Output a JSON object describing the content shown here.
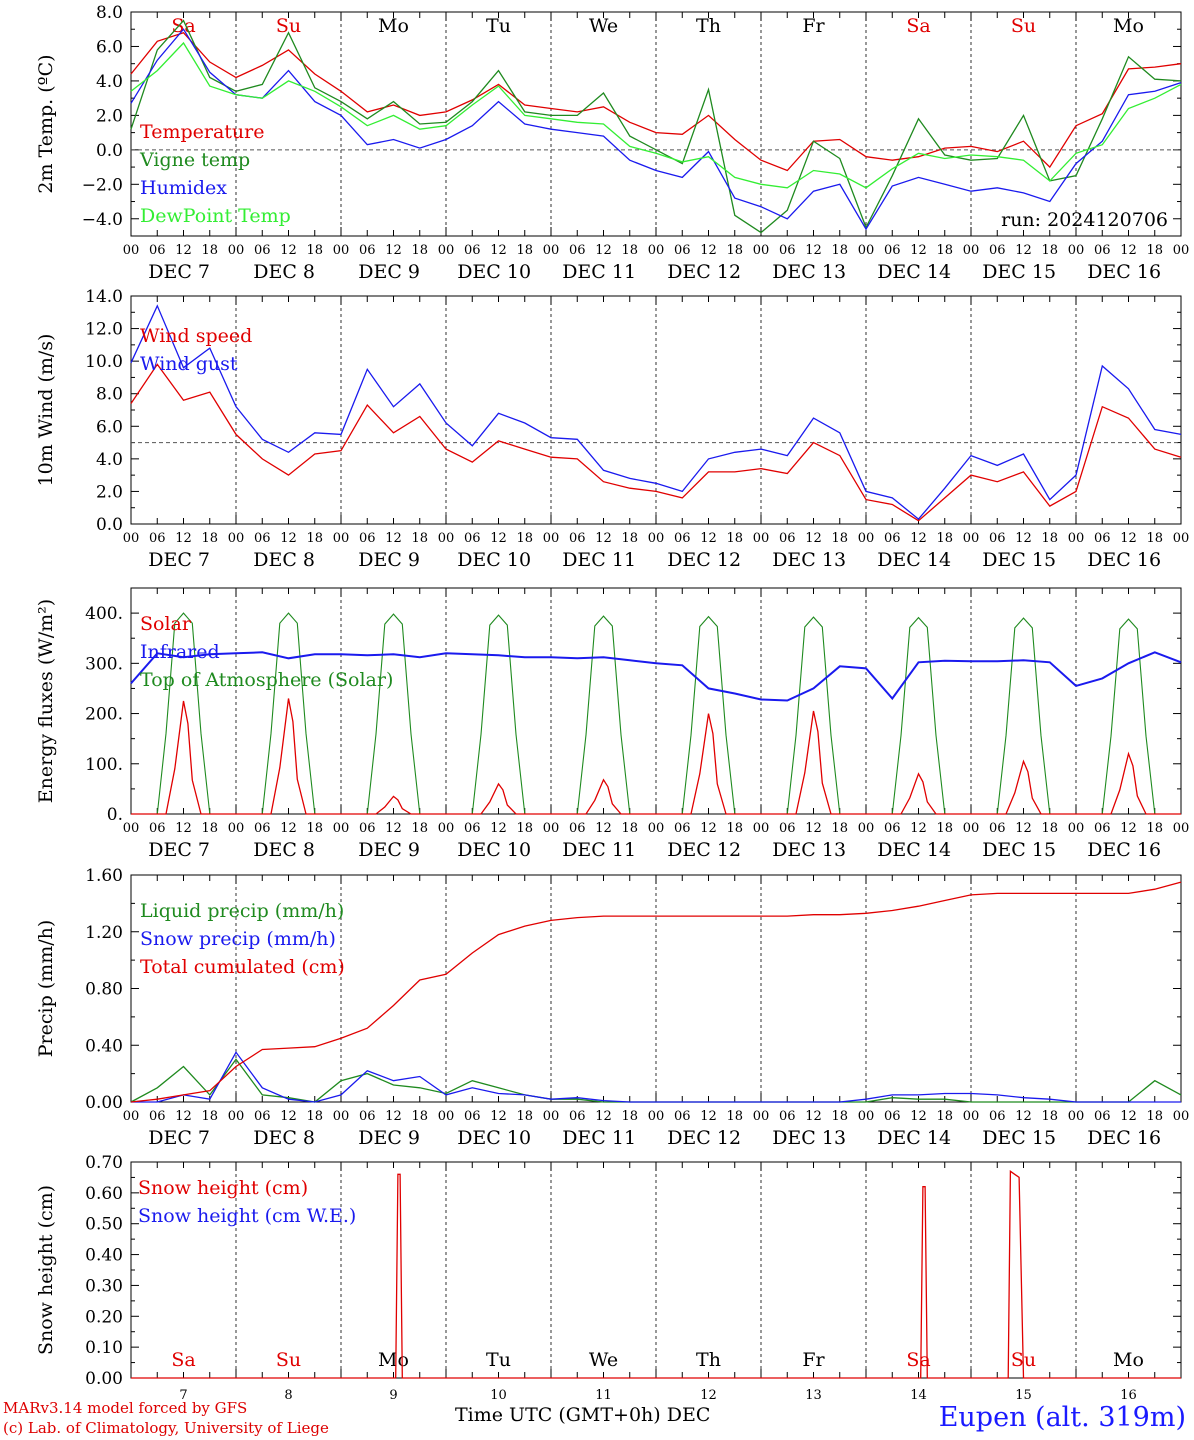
{
  "colors": {
    "red": "#e00000",
    "green": "#1f8a1f",
    "blue": "#1a1aee",
    "lightgreen": "#33ee33",
    "grey": "#555555"
  },
  "footer": {
    "model": "MARv3.14 model forced by GFS",
    "copyright": "(c) Lab. of Climatology, University of Liege",
    "x_axis_title": "Time UTC (GMT+0h) DEC",
    "station": "Eupen (alt. 319m)"
  },
  "chart_data": [
    {
      "type": "line",
      "ylabel": "2m Temp. (ºC)",
      "ylim": [
        -5.0,
        8.0
      ],
      "yticks": [
        "8.0",
        "6.0",
        "4.0",
        "2.0",
        "0.0",
        "−2.0",
        "−4.0"
      ],
      "yticks_values": [
        8,
        6,
        4,
        2,
        0,
        -2,
        -4
      ],
      "reference_line": 0,
      "weekday_labels": [
        "Sa",
        "Su",
        "Mo",
        "Tu",
        "We",
        "Th",
        "Fr",
        "Sa",
        "Su",
        "Mo"
      ],
      "annotation": "run: 2024120706",
      "hours": [
        0,
        6,
        12,
        18,
        24,
        30,
        36,
        42,
        48,
        54,
        60,
        66,
        72,
        78,
        84,
        90,
        96,
        102,
        108,
        114,
        120,
        126,
        132,
        138,
        144,
        150,
        156,
        162,
        168,
        174,
        180,
        186,
        192,
        198,
        204,
        210,
        216,
        222,
        228,
        234,
        240
      ],
      "series": [
        {
          "name": "Temperature",
          "color": "red",
          "values": [
            4.4,
            6.3,
            6.8,
            5.1,
            4.2,
            4.9,
            5.8,
            4.4,
            3.4,
            2.2,
            2.6,
            2.0,
            2.2,
            2.9,
            3.8,
            2.6,
            2.4,
            2.2,
            2.5,
            1.6,
            1.0,
            0.9,
            2.0,
            0.6,
            -0.6,
            -1.2,
            0.5,
            0.6,
            -0.4,
            -0.6,
            -0.4,
            0.1,
            0.2,
            -0.1,
            0.5,
            -1.0,
            1.4,
            2.1,
            4.7,
            4.8,
            5.0
          ]
        },
        {
          "name": "Vigne temp",
          "color": "green",
          "values": [
            1.2,
            5.8,
            7.5,
            4.2,
            3.4,
            3.8,
            6.8,
            3.6,
            2.8,
            1.8,
            2.8,
            1.5,
            1.6,
            2.8,
            4.6,
            2.2,
            2.0,
            2.0,
            3.3,
            0.8,
            0.0,
            -0.8,
            3.5,
            -3.8,
            -4.8,
            -3.5,
            0.5,
            -0.5,
            -4.5,
            -1.5,
            1.8,
            -0.3,
            -0.6,
            -0.5,
            2.0,
            -1.8,
            -1.5,
            1.8,
            5.4,
            4.1,
            4.0
          ]
        },
        {
          "name": "Humidex",
          "color": "blue",
          "values": [
            2.7,
            5.2,
            7.0,
            4.5,
            3.2,
            3.0,
            4.6,
            2.8,
            2.0,
            0.3,
            0.6,
            0.1,
            0.6,
            1.4,
            2.8,
            1.5,
            1.2,
            1.0,
            0.8,
            -0.6,
            -1.2,
            -1.6,
            -0.1,
            -2.8,
            -3.3,
            -4.0,
            -2.4,
            -2.0,
            -4.6,
            -2.1,
            -1.6,
            -2.0,
            -2.4,
            -2.2,
            -2.5,
            -3.0,
            -0.8,
            0.5,
            3.2,
            3.4,
            3.9
          ]
        },
        {
          "name": "DewPoint Temp",
          "color": "lightgreen",
          "values": [
            3.4,
            4.6,
            6.2,
            3.7,
            3.2,
            3.0,
            4.0,
            3.4,
            2.5,
            1.4,
            2.0,
            1.2,
            1.4,
            2.6,
            3.7,
            2.0,
            1.8,
            1.6,
            1.5,
            0.2,
            -0.2,
            -0.7,
            -0.4,
            -1.6,
            -2.0,
            -2.2,
            -1.2,
            -1.4,
            -2.2,
            -1.1,
            -0.2,
            -0.5,
            -0.3,
            -0.4,
            -0.6,
            -1.8,
            -0.2,
            0.3,
            2.4,
            3.0,
            3.8
          ]
        }
      ],
      "x_day_labels": [
        "DEC  7",
        "DEC  8",
        "DEC  9",
        "DEC 10",
        "DEC 11",
        "DEC 12",
        "DEC 13",
        "DEC 14",
        "DEC 15",
        "DEC 16"
      ]
    },
    {
      "type": "line",
      "ylabel": "10m Wind (m/s)",
      "ylim": [
        0.0,
        14.0
      ],
      "yticks": [
        "14.0",
        "12.0",
        "10.0",
        "8.0",
        "6.0",
        "4.0",
        "2.0",
        "0.0"
      ],
      "yticks_values": [
        14,
        12,
        10,
        8,
        6,
        4,
        2,
        0
      ],
      "reference_line": 5,
      "hours": [
        0,
        6,
        12,
        18,
        24,
        30,
        36,
        42,
        48,
        54,
        60,
        66,
        72,
        78,
        84,
        90,
        96,
        102,
        108,
        114,
        120,
        126,
        132,
        138,
        144,
        150,
        156,
        162,
        168,
        174,
        180,
        186,
        192,
        198,
        204,
        210,
        216,
        222,
        228,
        234,
        240
      ],
      "series": [
        {
          "name": "Wind speed",
          "color": "red",
          "values": [
            7.4,
            9.8,
            7.6,
            8.1,
            5.5,
            4.0,
            3.0,
            4.3,
            4.5,
            7.3,
            5.6,
            6.6,
            4.6,
            3.8,
            5.1,
            4.6,
            4.1,
            4.0,
            2.6,
            2.2,
            2.0,
            1.6,
            3.2,
            3.2,
            3.4,
            3.1,
            5.0,
            4.2,
            1.5,
            1.2,
            0.2,
            1.6,
            3.0,
            2.6,
            3.2,
            1.1,
            2.0,
            7.2,
            6.5,
            4.6,
            4.1
          ]
        },
        {
          "name": "Wind gust",
          "color": "blue",
          "values": [
            9.9,
            13.4,
            9.6,
            10.8,
            7.2,
            5.2,
            4.4,
            5.6,
            5.5,
            9.5,
            7.2,
            8.6,
            6.2,
            4.8,
            6.8,
            6.2,
            5.3,
            5.2,
            3.3,
            2.8,
            2.5,
            2.0,
            4.0,
            4.4,
            4.6,
            4.2,
            6.5,
            5.6,
            2.0,
            1.6,
            0.3,
            2.2,
            4.2,
            3.6,
            4.3,
            1.5,
            3.0,
            9.7,
            8.3,
            5.8,
            5.5
          ]
        }
      ],
      "x_day_labels": [
        "DEC  7",
        "DEC  8",
        "DEC  9",
        "DEC 10",
        "DEC 11",
        "DEC 12",
        "DEC 13",
        "DEC 14",
        "DEC 15",
        "DEC 16"
      ]
    },
    {
      "type": "line",
      "ylabel": "Energy fluxes (W/m²)",
      "ylim": [
        0,
        450
      ],
      "yticks": [
        "400.",
        "300.",
        "200.",
        "100.",
        "0."
      ],
      "yticks_values": [
        400,
        300,
        200,
        100,
        0
      ],
      "day_peaks": {
        "solar": [
          225,
          230,
          35,
          60,
          68,
          200,
          205,
          80,
          105,
          120
        ],
        "top_of_atmosphere": [
          400,
          400,
          398,
          396,
          394,
          393,
          392,
          391,
          390,
          388
        ]
      },
      "hours": [
        0,
        6,
        12,
        18,
        24,
        30,
        36,
        42,
        48,
        54,
        60,
        66,
        72,
        78,
        84,
        90,
        96,
        102,
        108,
        114,
        120,
        126,
        132,
        138,
        144,
        150,
        156,
        162,
        168,
        174,
        180,
        186,
        192,
        198,
        204,
        210,
        216,
        222,
        228,
        234,
        240
      ],
      "series": [
        {
          "name": "Solar",
          "color": "red"
        },
        {
          "name": "Infrared",
          "color": "blue",
          "values": [
            260,
            320,
            312,
            318,
            320,
            322,
            310,
            318,
            318,
            316,
            318,
            312,
            320,
            318,
            316,
            312,
            312,
            310,
            312,
            306,
            300,
            296,
            250,
            240,
            228,
            226,
            250,
            294,
            290,
            230,
            302,
            305,
            304,
            304,
            306,
            302,
            255,
            270,
            300,
            322,
            302
          ]
        },
        {
          "name": "Top of Atmosphere (Solar)",
          "color": "green"
        }
      ],
      "x_day_labels": [
        "DEC  7",
        "DEC  8",
        "DEC  9",
        "DEC 10",
        "DEC 11",
        "DEC 12",
        "DEC 13",
        "DEC 14",
        "DEC 15",
        "DEC 16"
      ]
    },
    {
      "type": "line",
      "ylabel": "Precip (mm/h)",
      "ylim": [
        0.0,
        1.6
      ],
      "yticks": [
        "1.60",
        "1.20",
        "0.80",
        "0.40",
        "0.00"
      ],
      "yticks_values": [
        1.6,
        1.2,
        0.8,
        0.4,
        0.0
      ],
      "hours": [
        0,
        6,
        12,
        18,
        24,
        30,
        36,
        42,
        48,
        54,
        60,
        66,
        72,
        78,
        84,
        90,
        96,
        102,
        108,
        114,
        120,
        126,
        132,
        138,
        144,
        150,
        156,
        162,
        168,
        174,
        180,
        186,
        192,
        198,
        204,
        210,
        216,
        222,
        228,
        234,
        240
      ],
      "series": [
        {
          "name": "Liquid precip (mm/h)",
          "color": "green",
          "values": [
            0.0,
            0.1,
            0.25,
            0.05,
            0.3,
            0.05,
            0.03,
            0.0,
            0.15,
            0.2,
            0.12,
            0.1,
            0.06,
            0.15,
            0.1,
            0.05,
            0.02,
            0.02,
            0.0,
            0.0,
            0.0,
            0.0,
            0.0,
            0.0,
            0.0,
            0.0,
            0.0,
            0.0,
            0.0,
            0.03,
            0.02,
            0.02,
            0.0,
            0.0,
            0.0,
            0.0,
            0.0,
            0.0,
            0.0,
            0.15,
            0.05
          ]
        },
        {
          "name": "Snow precip (mm/h)",
          "color": "blue",
          "values": [
            0.0,
            0.0,
            0.05,
            0.02,
            0.35,
            0.1,
            0.02,
            0.0,
            0.05,
            0.22,
            0.15,
            0.18,
            0.05,
            0.1,
            0.06,
            0.05,
            0.02,
            0.03,
            0.01,
            0.0,
            0.0,
            0.0,
            0.0,
            0.0,
            0.0,
            0.0,
            0.0,
            0.0,
            0.02,
            0.05,
            0.05,
            0.06,
            0.06,
            0.05,
            0.03,
            0.02,
            0.0,
            0.0,
            0.0,
            0.0,
            0.0
          ]
        },
        {
          "name": "Total cumulated (cm)",
          "color": "red",
          "values": [
            0.0,
            0.02,
            0.05,
            0.08,
            0.25,
            0.37,
            0.38,
            0.39,
            0.45,
            0.52,
            0.68,
            0.86,
            0.9,
            1.05,
            1.18,
            1.24,
            1.28,
            1.3,
            1.31,
            1.31,
            1.31,
            1.31,
            1.31,
            1.31,
            1.31,
            1.31,
            1.32,
            1.32,
            1.33,
            1.35,
            1.38,
            1.42,
            1.46,
            1.47,
            1.47,
            1.47,
            1.47,
            1.47,
            1.47,
            1.5,
            1.55
          ]
        }
      ],
      "x_day_labels": [
        "DEC  7",
        "DEC  8",
        "DEC  9",
        "DEC 10",
        "DEC 11",
        "DEC 12",
        "DEC 13",
        "DEC 14",
        "DEC 15",
        "DEC 16"
      ]
    },
    {
      "type": "line",
      "ylabel": "Snow height (cm)",
      "ylim": [
        0.0,
        0.7
      ],
      "yticks": [
        "0.70",
        "0.60",
        "0.50",
        "0.40",
        "0.30",
        "0.20",
        "0.10",
        "0.00"
      ],
      "yticks_values": [
        0.7,
        0.6,
        0.5,
        0.4,
        0.3,
        0.2,
        0.1,
        0.0
      ],
      "weekday_labels": [
        "Sa",
        "Su",
        "Mo",
        "Tu",
        "We",
        "Th",
        "Fr",
        "Sa",
        "Su",
        "Mo"
      ],
      "hours": [
        0,
        60,
        60.5,
        61,
        61.5,
        62,
        62.5,
        180,
        180.5,
        181,
        181.5,
        182,
        200,
        200.5,
        201,
        203,
        204,
        204.5,
        240
      ],
      "series": [
        {
          "name": "Snow height (cm)",
          "color": "red",
          "values": [
            0,
            0,
            0,
            0.66,
            0.66,
            0,
            0,
            0,
            0,
            0.62,
            0.62,
            0,
            0,
            0,
            0.67,
            0.65,
            0,
            0,
            0
          ]
        },
        {
          "name": "Snow height (cm W.E.)",
          "color": "blue"
        }
      ],
      "x_day_labels": [
        "7",
        "8",
        "9",
        "10",
        "11",
        "12",
        "13",
        "14",
        "15",
        "16"
      ]
    }
  ],
  "hour_tick_labels": [
    "00",
    "06",
    "12",
    "18"
  ],
  "final_hour_label": "00"
}
